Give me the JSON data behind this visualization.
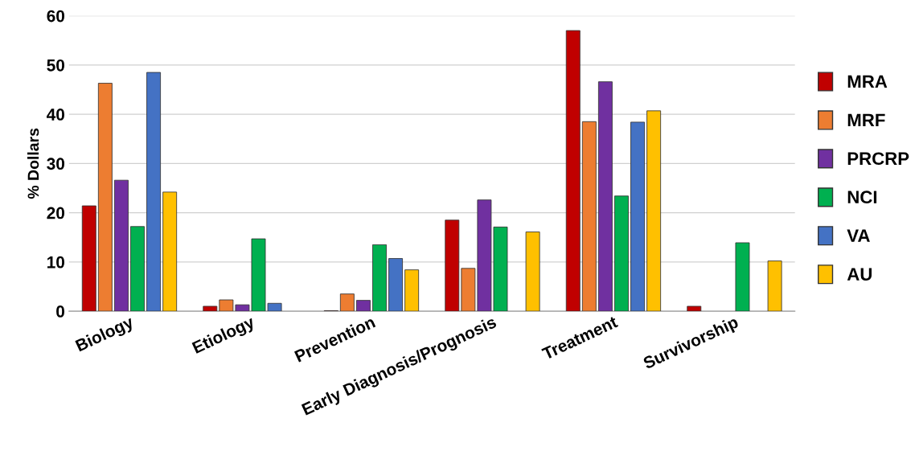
{
  "chart_data": {
    "type": "bar",
    "ylabel": "% Dollars",
    "categories": [
      "Biology",
      "Etiology",
      "Prevention",
      "Early Diagnosis/Prognosis",
      "Treatment",
      "Survivorship"
    ],
    "series": [
      {
        "name": "MRA",
        "color": "#c00000",
        "values": [
          21.4,
          1.0,
          0.1,
          18.5,
          57.0,
          1.0
        ]
      },
      {
        "name": "MRF",
        "color": "#ed7d31",
        "values": [
          46.3,
          2.3,
          3.5,
          8.7,
          38.5,
          null
        ]
      },
      {
        "name": "PRCRP",
        "color": "#7030a0",
        "values": [
          26.6,
          1.3,
          2.2,
          22.6,
          46.6,
          null
        ]
      },
      {
        "name": "NCI",
        "color": "#00b050",
        "values": [
          17.2,
          14.7,
          13.5,
          17.1,
          23.4,
          13.9
        ]
      },
      {
        "name": "VA",
        "color": "#4472c4",
        "values": [
          48.5,
          1.6,
          10.7,
          null,
          38.4,
          null
        ]
      },
      {
        "name": "AU",
        "color": "#ffc000",
        "values": [
          24.2,
          null,
          8.4,
          16.1,
          40.7,
          10.2
        ]
      }
    ],
    "ylim": [
      0,
      60
    ],
    "yticks": [
      0,
      10,
      20,
      30,
      40,
      50,
      60
    ],
    "grid": "y",
    "legend": "right"
  }
}
